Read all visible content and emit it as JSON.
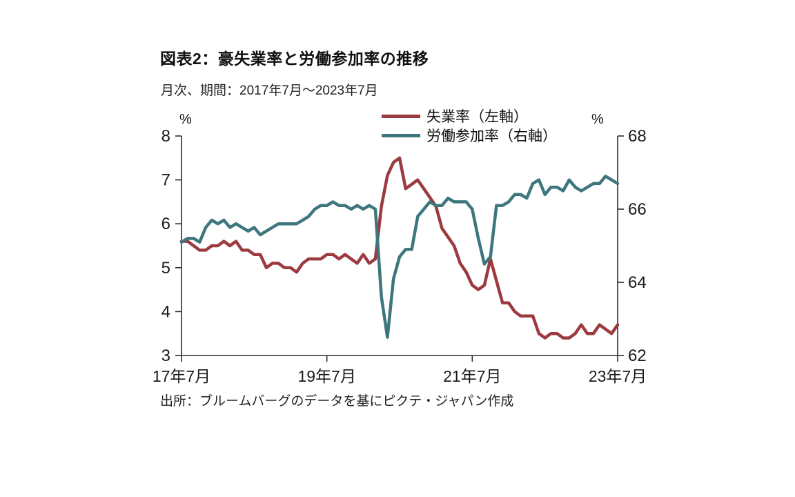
{
  "page": {
    "title": "図表2：豪失業率と労働参加率の推移",
    "subtitle": "月次、期間：2017年7月～2023年7月",
    "source": "出所：ブルームバーグのデータを基にピクテ・ジャパン作成"
  },
  "chart_data": {
    "type": "line",
    "title": "図表2：豪失業率と労働参加率の推移",
    "subtitle": "月次、期間：2017年7月～2023年7月",
    "source": "出所：ブルームバーグのデータを基にピクテ・ジャパン作成",
    "x_start": "2017-07",
    "x_end": "2023-07",
    "x_frequency": "monthly",
    "x_tick_labels": [
      "17年7月",
      "19年7月",
      "21年7月",
      "23年7月"
    ],
    "x_tick_indices": [
      0,
      24,
      48,
      72
    ],
    "grid": false,
    "legend_position": "top-center",
    "left_axis": {
      "unit": "%",
      "ylim": [
        3,
        8
      ],
      "ticks": [
        3,
        4,
        5,
        6,
        7,
        8
      ]
    },
    "right_axis": {
      "unit": "%",
      "ylim": [
        62,
        68
      ],
      "ticks": [
        62,
        64,
        66,
        68
      ]
    },
    "series": [
      {
        "name": "失業率（左軸）",
        "axis": "left",
        "color": "#9c3a40",
        "values": [
          5.6,
          5.6,
          5.5,
          5.4,
          5.4,
          5.5,
          5.5,
          5.6,
          5.5,
          5.6,
          5.4,
          5.4,
          5.3,
          5.3,
          5.0,
          5.1,
          5.1,
          5.0,
          5.0,
          4.9,
          5.1,
          5.2,
          5.2,
          5.2,
          5.3,
          5.3,
          5.2,
          5.3,
          5.2,
          5.1,
          5.3,
          5.1,
          5.2,
          6.4,
          7.1,
          7.4,
          7.5,
          6.8,
          6.9,
          7.0,
          6.8,
          6.6,
          6.4,
          5.9,
          5.7,
          5.5,
          5.1,
          4.9,
          4.6,
          4.5,
          4.6,
          5.2,
          4.7,
          4.2,
          4.2,
          4.0,
          3.9,
          3.9,
          3.9,
          3.5,
          3.4,
          3.5,
          3.5,
          3.4,
          3.4,
          3.5,
          3.7,
          3.5,
          3.5,
          3.7,
          3.6,
          3.5,
          3.7
        ]
      },
      {
        "name": "労働参加率（右軸）",
        "axis": "right",
        "color": "#3e767d",
        "values": [
          65.1,
          65.2,
          65.2,
          65.1,
          65.5,
          65.7,
          65.6,
          65.7,
          65.5,
          65.6,
          65.5,
          65.4,
          65.5,
          65.3,
          65.4,
          65.5,
          65.6,
          65.6,
          65.6,
          65.6,
          65.7,
          65.8,
          66.0,
          66.1,
          66.1,
          66.2,
          66.1,
          66.1,
          66.0,
          66.1,
          66.0,
          66.1,
          66.0,
          63.6,
          62.5,
          64.1,
          64.7,
          64.9,
          64.9,
          65.8,
          66.0,
          66.2,
          66.1,
          66.1,
          66.3,
          66.2,
          66.2,
          66.2,
          66.0,
          65.2,
          64.5,
          64.7,
          66.1,
          66.1,
          66.2,
          66.4,
          66.4,
          66.3,
          66.7,
          66.8,
          66.4,
          66.6,
          66.6,
          66.5,
          66.8,
          66.6,
          66.5,
          66.6,
          66.7,
          66.7,
          66.9,
          66.8,
          66.7
        ]
      }
    ]
  }
}
